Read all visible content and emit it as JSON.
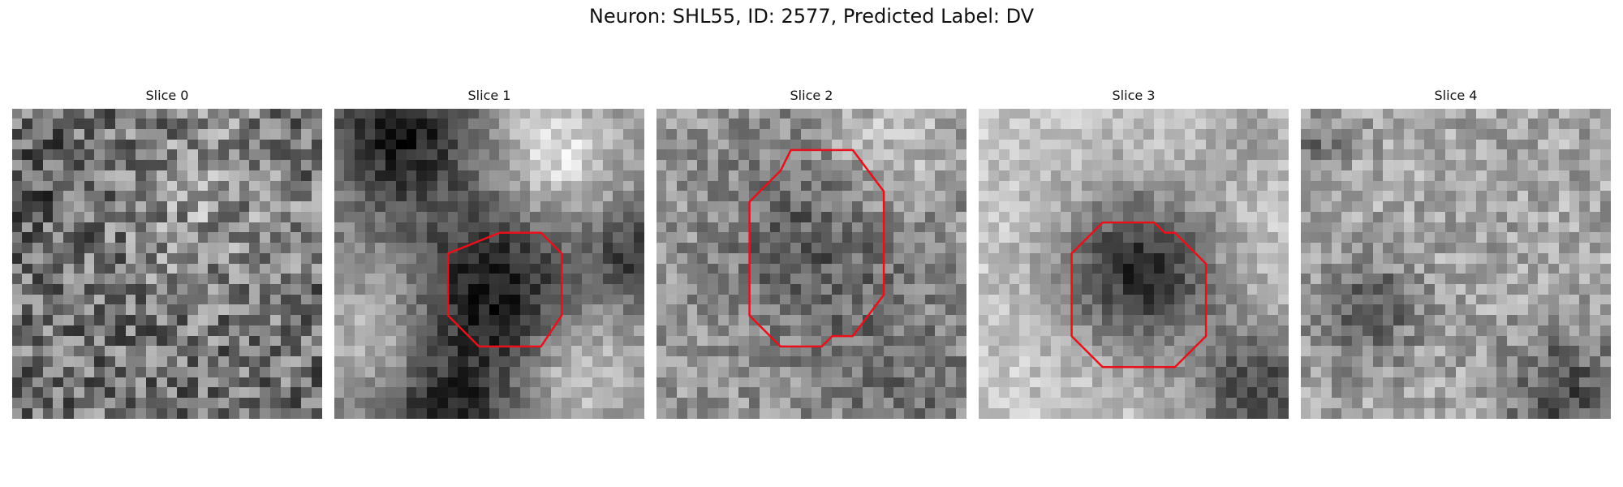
{
  "title": "Neuron: SHL55, ID: 2577, Predicted Label: DV",
  "colors": {
    "contour": "#e8101a",
    "background": "#ffffff"
  },
  "panels": [
    {
      "label": "Slice 0",
      "contour": null
    },
    {
      "label": "Slice 1",
      "contour": [
        [
          16,
          12
        ],
        [
          20,
          12
        ],
        [
          22,
          14
        ],
        [
          22,
          20
        ],
        [
          20,
          23
        ],
        [
          14,
          23
        ],
        [
          12,
          21
        ],
        [
          11,
          20
        ],
        [
          11,
          14
        ]
      ]
    },
    {
      "label": "Slice 2",
      "contour": [
        [
          13,
          4
        ],
        [
          19,
          4
        ],
        [
          22,
          8
        ],
        [
          22,
          18
        ],
        [
          19,
          22
        ],
        [
          17,
          22
        ],
        [
          16,
          23
        ],
        [
          12,
          23
        ],
        [
          9,
          20
        ],
        [
          9,
          9
        ],
        [
          12,
          6
        ]
      ]
    },
    {
      "label": "Slice 3",
      "contour": [
        [
          12,
          11
        ],
        [
          17,
          11
        ],
        [
          18,
          12
        ],
        [
          19,
          12
        ],
        [
          22,
          15
        ],
        [
          22,
          22
        ],
        [
          19,
          25
        ],
        [
          12,
          25
        ],
        [
          9,
          22
        ],
        [
          9,
          14
        ]
      ]
    },
    {
      "label": "Slice 4",
      "contour": null
    }
  ]
}
